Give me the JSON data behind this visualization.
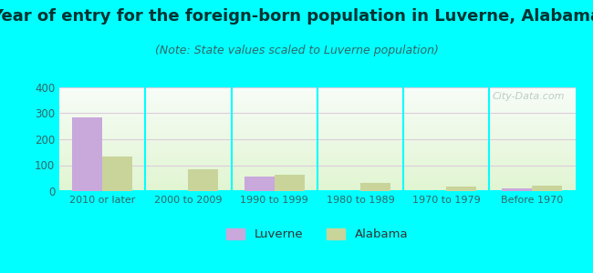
{
  "title": "Year of entry for the foreign-born population in Luverne, Alabama",
  "subtitle": "(Note: State values scaled to Luverne population)",
  "categories": [
    "2010 or later",
    "2000 to 2009",
    "1990 to 1999",
    "1980 to 1989",
    "1970 to 1979",
    "Before 1970"
  ],
  "luverne_values": [
    285,
    0,
    55,
    0,
    0,
    12
  ],
  "alabama_values": [
    135,
    85,
    62,
    30,
    17,
    22
  ],
  "luverne_color": "#c9a8dc",
  "alabama_color": "#c8d49a",
  "ylim": [
    0,
    400
  ],
  "yticks": [
    0,
    100,
    200,
    300,
    400
  ],
  "background_color": "#00ffff",
  "title_fontsize": 13,
  "subtitle_fontsize": 9,
  "watermark": "City-Data.com",
  "bar_width": 0.35,
  "grid_color": "#ddccdd",
  "tick_color": "#336666",
  "title_color": "#003333"
}
